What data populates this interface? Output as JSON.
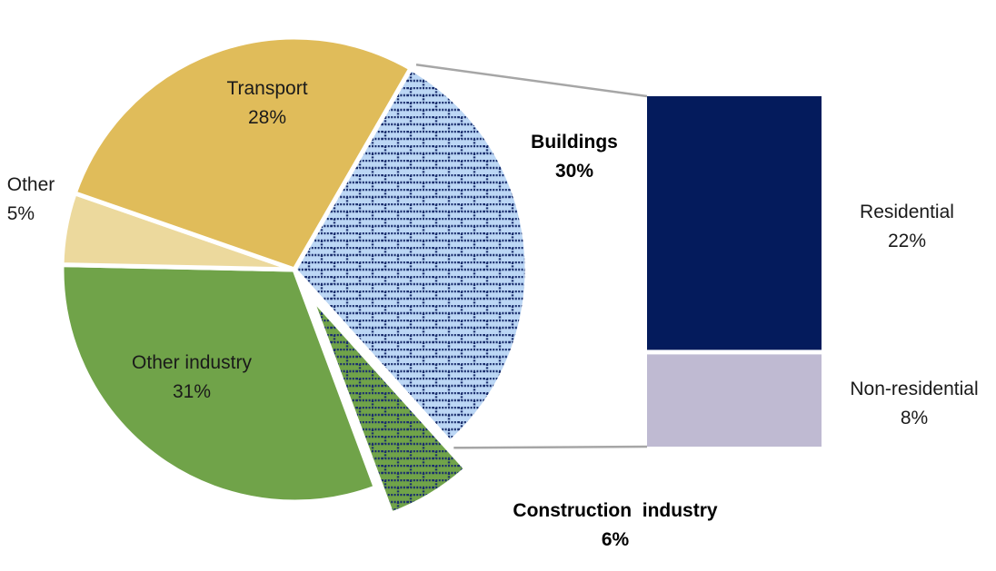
{
  "chart_data": {
    "type": "pie",
    "pie": {
      "slices": [
        {
          "name": "Buildings",
          "value": 30,
          "color": "#bcd7f5",
          "pattern": "brick",
          "pattern_color": "#1b2f6e"
        },
        {
          "name": "Construction industry",
          "value": 6,
          "color": "#70a349",
          "pattern": "brick",
          "pattern_color": "#1b2f6e",
          "exploded": true
        },
        {
          "name": "Other industry",
          "value": 31,
          "color": "#70a349"
        },
        {
          "name": "Other",
          "value": 5,
          "color": "#ecd99d"
        },
        {
          "name": "Transport",
          "value": 28,
          "color": "#e0bc5a"
        }
      ],
      "labels": [
        {
          "name": "Buildings",
          "pct": "30%"
        },
        {
          "name": "Construction  industry",
          "pct": "6%"
        },
        {
          "name": "Other industry",
          "pct": "31%"
        },
        {
          "name": "Other",
          "pct": "5%"
        },
        {
          "name": "Transport",
          "pct": "28%"
        }
      ]
    },
    "breakdown_bar": {
      "of": "Buildings",
      "segments": [
        {
          "name": "Residential",
          "value": 22,
          "pct": "22%",
          "color": "#041b5c"
        },
        {
          "name": "Non-residential",
          "value": 8,
          "pct": "8%",
          "color": "#bfbad2"
        }
      ]
    },
    "unit": "%"
  }
}
